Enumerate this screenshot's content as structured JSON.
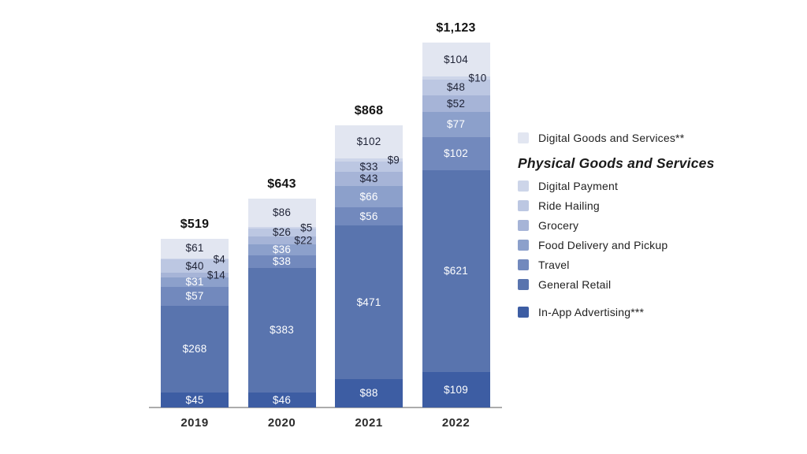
{
  "chart_data": {
    "type": "bar",
    "stacked": true,
    "grid": false,
    "categories": [
      "2019",
      "2020",
      "2021",
      "2022"
    ],
    "totals_display": [
      "$519",
      "$643",
      "$868",
      "$1,123"
    ],
    "value_prefix": "$",
    "colors": {
      "dark_value_text": "#1e2235",
      "light_value_text": "#ffffff",
      "axis_line": "#acacac"
    },
    "series_bottom_to_top": [
      {
        "name": "In-App Advertising***",
        "color": "#3d5da3",
        "label_color": "#ffffff",
        "values": [
          45,
          46,
          88,
          109
        ],
        "label_outside_right": [
          false,
          false,
          false,
          false
        ]
      },
      {
        "name": "General Retail",
        "color": "#5974ae",
        "label_color": "#ffffff",
        "values": [
          268,
          383,
          471,
          621
        ],
        "label_outside_right": [
          false,
          false,
          false,
          false
        ]
      },
      {
        "name": "Travel",
        "color": "#7289bd",
        "label_color": "#ffffff",
        "values": [
          57,
          38,
          56,
          102
        ],
        "label_outside_right": [
          false,
          false,
          false,
          false
        ]
      },
      {
        "name": "Food Delivery and Pickup",
        "color": "#8ca0cb",
        "label_color": "#ffffff",
        "values": [
          31,
          36,
          66,
          77
        ],
        "label_outside_right": [
          false,
          false,
          false,
          false
        ]
      },
      {
        "name": "Grocery",
        "color": "#a6b4d7",
        "label_color": "#1e2235",
        "values": [
          14,
          22,
          43,
          52
        ],
        "label_outside_right": [
          true,
          true,
          false,
          false
        ]
      },
      {
        "name": "Ride Hailing",
        "color": "#bcc7e2",
        "label_color": "#1e2235",
        "values": [
          40,
          26,
          33,
          48
        ],
        "label_outside_right": [
          false,
          false,
          false,
          false
        ]
      },
      {
        "name": "Digital Payment",
        "color": "#cdd5e9",
        "label_color": "#1e2235",
        "values": [
          4,
          5,
          9,
          10
        ],
        "label_outside_right": [
          true,
          true,
          true,
          true
        ]
      },
      {
        "name": "Digital Goods and Services**",
        "color": "#e2e6f1",
        "label_color": "#1e2235",
        "values": [
          61,
          86,
          102,
          104
        ],
        "label_outside_right": [
          false,
          false,
          false,
          false
        ]
      }
    ]
  },
  "legend": {
    "top_item": {
      "label": "Digital Goods and Services**",
      "color": "#e2e6f1"
    },
    "section_header": "Physical Goods and Services",
    "items": [
      {
        "label": "Digital Payment",
        "color": "#cdd5e9"
      },
      {
        "label": "Ride Hailing",
        "color": "#bcc7e2"
      },
      {
        "label": "Grocery",
        "color": "#a6b4d7"
      },
      {
        "label": "Food Delivery and Pickup",
        "color": "#8ca0cb"
      },
      {
        "label": "Travel",
        "color": "#7289bd"
      },
      {
        "label": "General Retail",
        "color": "#5974ae"
      }
    ],
    "bottom_item": {
      "label": "In-App Advertising***",
      "color": "#3d5da3"
    }
  }
}
